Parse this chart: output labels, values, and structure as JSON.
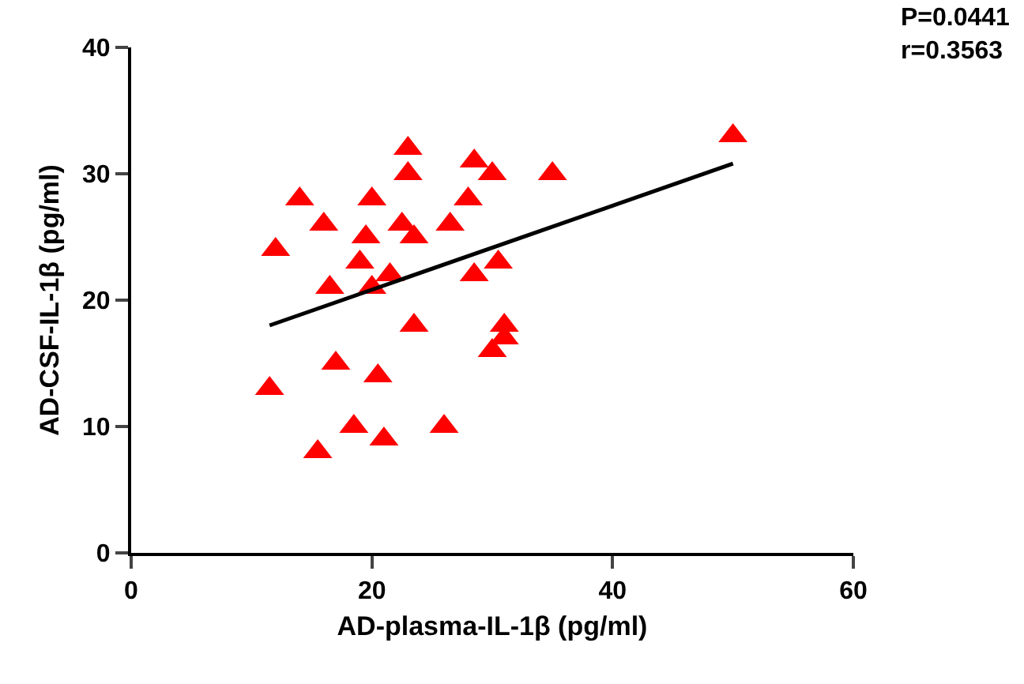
{
  "chart_data": {
    "type": "scatter",
    "xlabel": "AD-plasma-IL-1β (pg/ml)",
    "ylabel": "AD-CSF-IL-1β (pg/ml)",
    "annotations": [
      "P=0.0441\nr=0.3563"
    ],
    "xlim": [
      0,
      60
    ],
    "xticks": [
      0,
      20,
      40,
      60
    ],
    "ylim": [
      0,
      40
    ],
    "yticks": [
      0,
      10,
      20,
      30,
      40
    ],
    "grid": false,
    "series": [
      {
        "type": "scatter",
        "color": "#ff0000",
        "marker": "triangle",
        "x": [
          11.5,
          12,
          14,
          15.5,
          16,
          16.5,
          17,
          18.5,
          19,
          19.5,
          20,
          20,
          20.5,
          21,
          21.5,
          22.5,
          23,
          23,
          23.5,
          23.5,
          26,
          26.5,
          28,
          28.5,
          28.5,
          30,
          30,
          30.5,
          31,
          31,
          35,
          50
        ],
        "values": [
          13,
          24,
          28,
          8,
          26,
          21,
          15,
          10,
          23,
          25,
          28,
          21,
          14,
          9,
          22,
          26,
          32,
          30,
          18,
          25,
          10,
          26,
          28,
          31,
          22,
          30,
          16,
          23,
          17,
          18,
          30,
          33
        ]
      },
      {
        "type": "line",
        "color": "#000000",
        "marker": "none",
        "x": [
          11.5,
          50
        ],
        "values": [
          18,
          30.8
        ]
      }
    ]
  }
}
